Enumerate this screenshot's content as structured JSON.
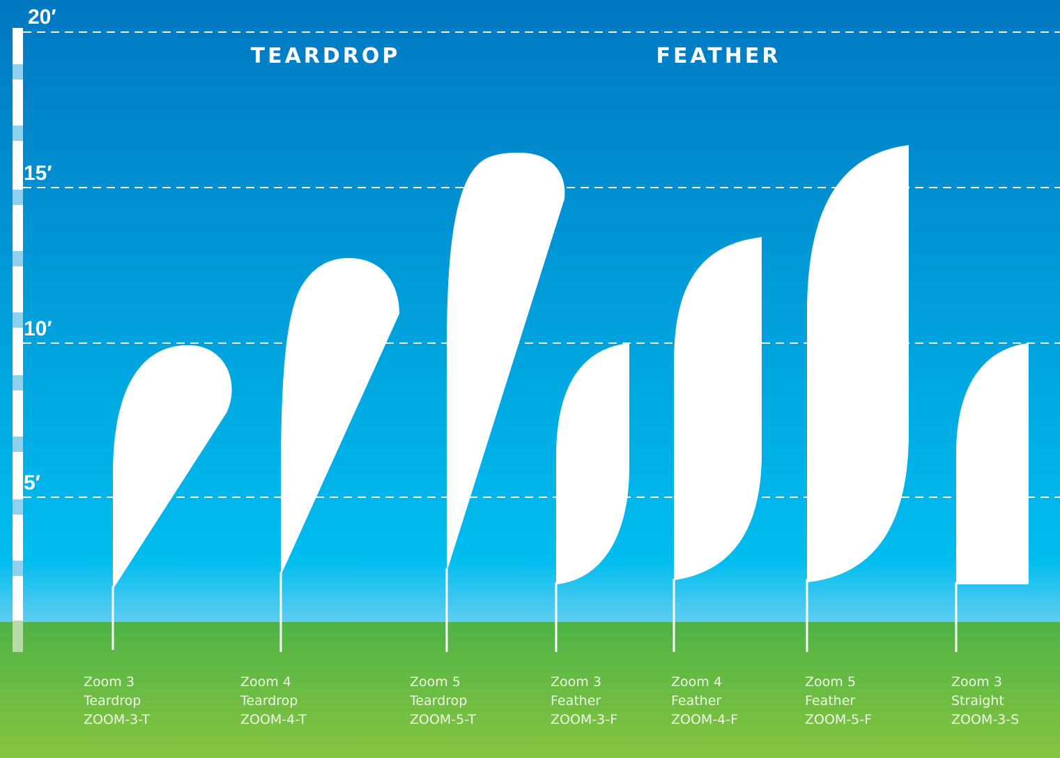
{
  "scale": {
    "labels": [
      "20′",
      "15′",
      "10′",
      "5′"
    ]
  },
  "groups": [
    {
      "title": "TEARDROP"
    },
    {
      "title": "FEATHER"
    }
  ],
  "flags": [
    {
      "lines": [
        "Zoom 3",
        "Teardrop",
        "ZOOM-3-T"
      ]
    },
    {
      "lines": [
        "Zoom 4",
        "Teardrop",
        "ZOOM-4-T"
      ]
    },
    {
      "lines": [
        "Zoom 5",
        "Teardrop",
        "ZOOM-5-T"
      ]
    },
    {
      "lines": [
        "Zoom 3",
        "Feather",
        "ZOOM-3-F"
      ]
    },
    {
      "lines": [
        "Zoom 4",
        "Feather",
        "ZOOM-4-F"
      ]
    },
    {
      "lines": [
        "Zoom 5",
        "Feather",
        "ZOOM-5-F"
      ]
    },
    {
      "lines": [
        "Zoom 3",
        "Straight",
        "ZOOM-3-S"
      ]
    }
  ]
}
